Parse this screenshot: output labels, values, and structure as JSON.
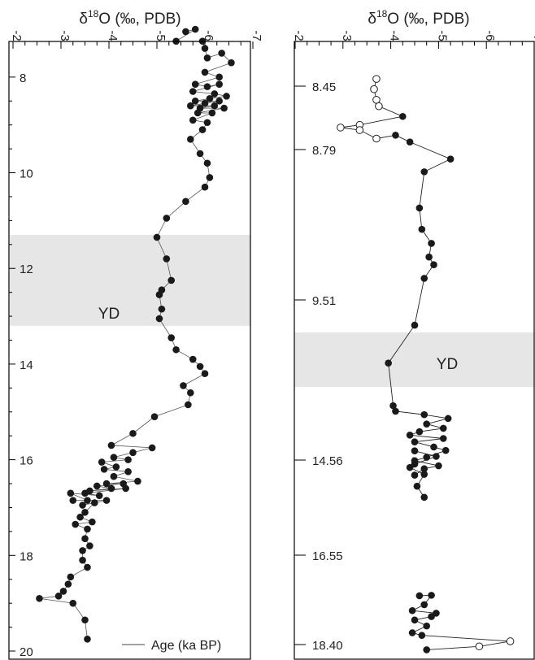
{
  "chart_data": [
    {
      "type": "scatter",
      "title": "δ18O (‰, PDB)",
      "title_parts": {
        "delta": "δ",
        "sup": "18",
        "rest": "O (‰, PDB)"
      },
      "xlim": [
        -2,
        -7
      ],
      "x_ticks": [
        "-2",
        "-3",
        "-4",
        "-5",
        "-6",
        "-7"
      ],
      "ylim": [
        7,
        20
      ],
      "y_ticks": [
        "8",
        "10",
        "12",
        "14",
        "16",
        "18",
        "20"
      ],
      "shaded_band": {
        "label": "YD",
        "y_range": [
          11.3,
          13.2
        ],
        "color": "#e6e6e6"
      },
      "legend": {
        "label": "Age (ka BP)",
        "position": "bottom-right"
      },
      "marker_color": "#1a1a1a",
      "line_color": "#555555",
      "series": [
        {
          "points": [
            [
              -5.6,
              7.05
            ],
            [
              -5.8,
              7.0
            ],
            [
              -5.4,
              7.25
            ],
            [
              -5.95,
              7.25
            ],
            [
              -6.0,
              7.4
            ],
            [
              -6.05,
              7.6
            ],
            [
              -6.35,
              7.5
            ],
            [
              -6.55,
              7.7
            ],
            [
              -6.0,
              7.9
            ],
            [
              -6.3,
              8.0
            ],
            [
              -5.8,
              8.15
            ],
            [
              -6.05,
              8.2
            ],
            [
              -6.3,
              8.15
            ],
            [
              -5.75,
              8.3
            ],
            [
              -6.2,
              8.35
            ],
            [
              -6.45,
              8.4
            ],
            [
              -6.1,
              8.45
            ],
            [
              -5.8,
              8.5
            ],
            [
              -6.3,
              8.5
            ],
            [
              -6.0,
              8.55
            ],
            [
              -5.7,
              8.6
            ],
            [
              -6.2,
              8.6
            ],
            [
              -5.9,
              8.65
            ],
            [
              -6.4,
              8.65
            ],
            [
              -5.85,
              8.75
            ],
            [
              -6.15,
              8.75
            ],
            [
              -5.75,
              8.9
            ],
            [
              -6.05,
              8.95
            ],
            [
              -5.95,
              9.1
            ],
            [
              -5.7,
              9.3
            ],
            [
              -5.9,
              9.6
            ],
            [
              -6.05,
              9.8
            ],
            [
              -6.1,
              10.1
            ],
            [
              -6.0,
              10.3
            ],
            [
              -5.6,
              10.6
            ],
            [
              -5.2,
              10.95
            ],
            [
              -5.0,
              11.35
            ],
            [
              -5.2,
              11.8
            ],
            [
              -5.3,
              12.25
            ],
            [
              -5.1,
              12.45
            ],
            [
              -5.05,
              12.55
            ],
            [
              -5.1,
              12.85
            ],
            [
              -5.05,
              13.05
            ],
            [
              -5.3,
              13.45
            ],
            [
              -5.4,
              13.7
            ],
            [
              -5.75,
              13.9
            ],
            [
              -5.9,
              14.05
            ],
            [
              -6.0,
              14.2
            ],
            [
              -5.55,
              14.45
            ],
            [
              -5.7,
              14.6
            ],
            [
              -5.65,
              14.85
            ],
            [
              -4.95,
              15.1
            ],
            [
              -4.5,
              15.45
            ],
            [
              -4.05,
              15.7
            ],
            [
              -4.9,
              15.75
            ],
            [
              -4.5,
              15.85
            ],
            [
              -4.1,
              15.95
            ],
            [
              -4.4,
              16.0
            ],
            [
              -3.85,
              16.05
            ],
            [
              -4.15,
              16.15
            ],
            [
              -3.9,
              16.2
            ],
            [
              -4.4,
              16.25
            ],
            [
              -4.1,
              16.35
            ],
            [
              -4.6,
              16.45
            ],
            [
              -3.95,
              16.5
            ],
            [
              -4.3,
              16.5
            ],
            [
              -3.75,
              16.55
            ],
            [
              -4.05,
              16.6
            ],
            [
              -3.6,
              16.65
            ],
            [
              -4.35,
              16.6
            ],
            [
              -3.5,
              16.7
            ],
            [
              -3.8,
              16.75
            ],
            [
              -3.2,
              16.7
            ],
            [
              -3.55,
              16.85
            ],
            [
              -3.25,
              16.85
            ],
            [
              -3.95,
              16.85
            ],
            [
              -3.45,
              16.95
            ],
            [
              -3.7,
              16.9
            ],
            [
              -3.5,
              17.1
            ],
            [
              -3.4,
              17.2
            ],
            [
              -3.65,
              17.3
            ],
            [
              -3.3,
              17.35
            ],
            [
              -3.55,
              17.45
            ],
            [
              -3.5,
              17.65
            ],
            [
              -3.6,
              17.8
            ],
            [
              -3.45,
              17.9
            ],
            [
              -3.45,
              18.1
            ],
            [
              -3.55,
              18.25
            ],
            [
              -3.2,
              18.45
            ],
            [
              -3.15,
              18.6
            ],
            [
              -3.05,
              18.75
            ],
            [
              -2.95,
              18.85
            ],
            [
              -2.55,
              18.9
            ],
            [
              -3.25,
              19.0
            ],
            [
              -3.5,
              19.35
            ],
            [
              -3.55,
              19.75
            ]
          ]
        }
      ]
    },
    {
      "type": "scatter",
      "title": "δ18O (‰, PDB)",
      "title_parts": {
        "delta": "δ",
        "sup": "18",
        "rest": "O (‰, PDB)"
      },
      "xlim": [
        -2,
        -7
      ],
      "x_ticks": [
        "-2",
        "-3",
        "-4",
        "-5",
        "-6",
        "-7"
      ],
      "y_ticks": [
        "8.45",
        "8.79",
        "9.51",
        "14.56",
        "16.55",
        "18.40"
      ],
      "shaded_band": {
        "label": "YD",
        "color": "#e6e6e6"
      },
      "marker_color": "#1a1a1a",
      "line_color": "#222222",
      "series": [
        {
          "points": [
            [
              -3.7,
              0.088
            ],
            [
              -3.65,
              0.112
            ],
            [
              -3.7,
              0.137
            ],
            [
              -3.75,
              0.152
            ],
            [
              -4.25,
              0.176
            ],
            [
              -3.35,
              0.196
            ],
            [
              -2.95,
              0.202
            ],
            [
              -3.35,
              0.208
            ],
            [
              -3.7,
              0.228
            ],
            [
              -4.1,
              0.22
            ],
            [
              -4.4,
              0.236
            ],
            [
              -5.25,
              0.276
            ],
            [
              -4.7,
              0.306
            ],
            [
              -4.6,
              0.391
            ],
            [
              -4.65,
              0.441
            ],
            [
              -4.85,
              0.474
            ],
            [
              -4.8,
              0.506
            ],
            [
              -4.9,
              0.524
            ],
            [
              -4.7,
              0.556
            ],
            [
              -4.5,
              0.666
            ],
            [
              -3.95,
              0.755
            ],
            [
              -4.05,
              0.855
            ],
            [
              -4.1,
              0.868
            ],
            [
              -4.7,
              0.876
            ],
            [
              -5.2,
              0.885
            ],
            [
              -4.75,
              0.898
            ],
            [
              -5.1,
              0.908
            ],
            [
              -4.6,
              0.916
            ],
            [
              -4.4,
              0.924
            ],
            [
              -5.1,
              0.932
            ],
            [
              -4.5,
              0.94
            ],
            [
              -4.9,
              0.952
            ],
            [
              -5.15,
              0.96
            ],
            [
              -4.75,
              0.976
            ],
            [
              -4.5,
              0.984
            ],
            [
              -5.0,
              0.996
            ],
            [
              -4.7,
              1.003
            ],
            [
              -4.5,
              1.018
            ]
          ]
        },
        {
          "points": [
            [
              -4.5,
              0.961
            ],
            [
              -4.95,
              0.974
            ],
            [
              -4.5,
              0.992
            ],
            [
              -4.4,
              1.0
            ],
            [
              -4.7,
              1.016
            ],
            [
              -4.55,
              1.044
            ],
            [
              -4.7,
              1.07
            ]
          ]
        },
        {
          "points": [
            [
              -4.6,
              1.301
            ],
            [
              -4.85,
              1.3
            ],
            [
              -4.7,
              1.322
            ],
            [
              -4.45,
              1.336
            ],
            [
              -4.95,
              1.342
            ],
            [
              -4.85,
              1.35
            ],
            [
              -4.5,
              1.358
            ],
            [
              -4.75,
              1.372
            ],
            [
              -4.45,
              1.388
            ],
            [
              -4.65,
              1.394
            ],
            [
              -6.5,
              1.408
            ],
            [
              -5.85,
              1.42
            ],
            [
              -4.75,
              1.428
            ]
          ]
        }
      ],
      "open_markers": [
        [
          -3.7,
          0.088
        ],
        [
          -3.65,
          0.112
        ],
        [
          -3.7,
          0.137
        ],
        [
          -3.75,
          0.152
        ],
        [
          -3.35,
          0.196
        ],
        [
          -2.95,
          0.202
        ],
        [
          -3.35,
          0.208
        ],
        [
          -3.7,
          0.228
        ],
        [
          -6.5,
          1.408
        ],
        [
          -5.85,
          1.42
        ]
      ]
    }
  ]
}
